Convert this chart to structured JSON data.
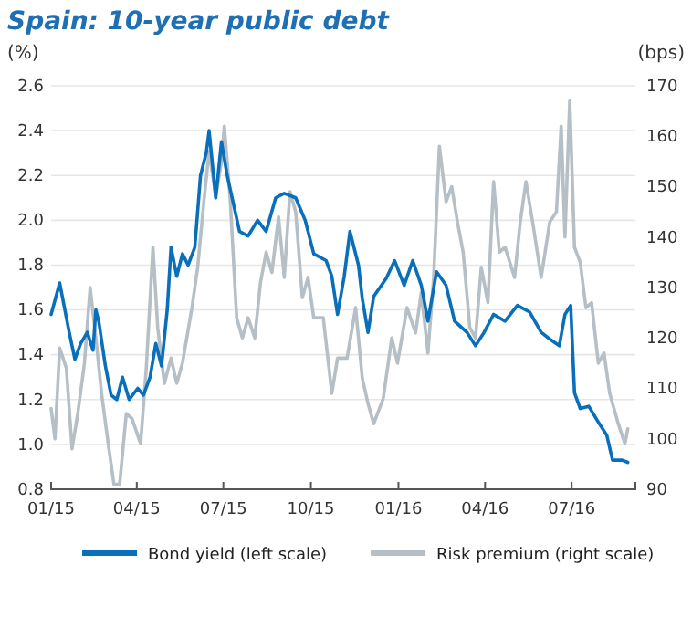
{
  "chart_data": {
    "type": "line",
    "title": "Spain: 10-year public debt",
    "ylabel": "(%)",
    "y2label": "(bps)",
    "xlim": [
      "2015-01-01",
      "2016-09-06"
    ],
    "xticks": [
      {
        "value": "2015-01-01",
        "label": "01/15"
      },
      {
        "value": "2015-04-01",
        "label": "04/15"
      },
      {
        "value": "2015-07-01",
        "label": "07/15"
      },
      {
        "value": "2015-10-01",
        "label": "10/15"
      },
      {
        "value": "2016-01-01",
        "label": "01/16"
      },
      {
        "value": "2016-04-01",
        "label": "04/16"
      },
      {
        "value": "2016-07-01",
        "label": "07/16"
      }
    ],
    "ylim": [
      0.8,
      2.6
    ],
    "yticks": [
      0.8,
      {
        "value": 1.0,
        "label": "1.0"
      },
      1.2,
      1.4,
      1.6,
      1.8,
      {
        "value": 2.0,
        "label": "2.0"
      },
      2.2,
      2.4,
      2.6
    ],
    "y2lim": [
      90,
      170
    ],
    "y2ticks": [
      90,
      100,
      110,
      120,
      130,
      140,
      150,
      160,
      170
    ],
    "grid": "y",
    "legend": "bottom",
    "line_style": "solid",
    "marker": "none",
    "series": [
      {
        "name": "Bond yield (left scale)",
        "color": "#0a6fba",
        "axis": "y",
        "x": [
          "2015-01-01",
          "2015-01-10",
          "2015-01-20",
          "2015-01-26",
          "2015-02-01",
          "2015-02-08",
          "2015-02-14",
          "2015-02-17",
          "2015-02-20",
          "2015-02-27",
          "2015-03-05",
          "2015-03-11",
          "2015-03-17",
          "2015-03-24",
          "2015-04-02",
          "2015-04-08",
          "2015-04-15",
          "2015-04-21",
          "2015-04-27",
          "2015-05-03",
          "2015-05-07",
          "2015-05-13",
          "2015-05-19",
          "2015-05-25",
          "2015-06-01",
          "2015-06-07",
          "2015-06-13",
          "2015-06-16",
          "2015-06-23",
          "2015-06-29",
          "2015-07-05",
          "2015-07-18",
          "2015-07-27",
          "2015-08-06",
          "2015-08-15",
          "2015-08-25",
          "2015-09-03",
          "2015-09-15",
          "2015-09-25",
          "2015-10-04",
          "2015-10-17",
          "2015-10-23",
          "2015-10-29",
          "2015-11-05",
          "2015-11-11",
          "2015-11-20",
          "2015-11-24",
          "2015-11-30",
          "2015-12-06",
          "2015-12-19",
          "2015-12-28",
          "2016-01-07",
          "2016-01-16",
          "2016-01-25",
          "2016-02-01",
          "2016-02-10",
          "2016-02-20",
          "2016-02-29",
          "2016-03-13",
          "2016-03-22",
          "2016-03-31",
          "2016-04-10",
          "2016-04-22",
          "2016-05-05",
          "2016-05-18",
          "2016-05-30",
          "2016-06-08",
          "2016-06-18",
          "2016-06-24",
          "2016-06-30",
          "2016-07-04",
          "2016-07-10",
          "2016-07-19",
          "2016-07-29",
          "2016-08-07",
          "2016-08-13",
          "2016-08-23",
          "2016-08-29"
        ],
        "values": [
          1.58,
          1.72,
          1.5,
          1.38,
          1.45,
          1.5,
          1.42,
          1.6,
          1.55,
          1.35,
          1.22,
          1.2,
          1.3,
          1.2,
          1.25,
          1.22,
          1.3,
          1.45,
          1.35,
          1.6,
          1.88,
          1.75,
          1.85,
          1.8,
          1.88,
          2.2,
          2.3,
          2.4,
          2.1,
          2.35,
          2.2,
          1.95,
          1.93,
          2.0,
          1.95,
          2.1,
          2.12,
          2.1,
          2.0,
          1.85,
          1.82,
          1.75,
          1.58,
          1.75,
          1.95,
          1.8,
          1.65,
          1.5,
          1.66,
          1.74,
          1.82,
          1.71,
          1.82,
          1.71,
          1.55,
          1.77,
          1.71,
          1.55,
          1.5,
          1.44,
          1.5,
          1.58,
          1.55,
          1.62,
          1.59,
          1.5,
          1.47,
          1.44,
          1.58,
          1.62,
          1.23,
          1.16,
          1.17,
          1.1,
          1.04,
          0.93,
          0.93,
          0.92
        ]
      },
      {
        "name": "Risk premium (right scale)",
        "color": "#b5bfc5",
        "axis": "y2",
        "x": [
          "2015-01-01",
          "2015-01-05",
          "2015-01-10",
          "2015-01-17",
          "2015-01-23",
          "2015-01-29",
          "2015-02-05",
          "2015-02-11",
          "2015-02-17",
          "2015-02-23",
          "2015-03-02",
          "2015-03-08",
          "2015-03-14",
          "2015-03-21",
          "2015-03-27",
          "2015-04-05",
          "2015-04-11",
          "2015-04-18",
          "2015-04-23",
          "2015-04-30",
          "2015-05-07",
          "2015-05-13",
          "2015-05-19",
          "2015-05-29",
          "2015-06-04",
          "2015-06-10",
          "2015-06-16",
          "2015-06-23",
          "2015-06-29",
          "2015-07-02",
          "2015-07-08",
          "2015-07-15",
          "2015-07-21",
          "2015-07-27",
          "2015-08-03",
          "2015-08-09",
          "2015-08-15",
          "2015-08-21",
          "2015-08-28",
          "2015-09-03",
          "2015-09-09",
          "2015-09-15",
          "2015-09-22",
          "2015-09-28",
          "2015-10-04",
          "2015-10-14",
          "2015-10-23",
          "2015-10-29",
          "2015-11-08",
          "2015-11-17",
          "2015-11-24",
          "2015-11-30",
          "2015-12-06",
          "2015-12-16",
          "2015-12-25",
          "2015-12-31",
          "2016-01-10",
          "2016-01-19",
          "2016-01-25",
          "2016-02-01",
          "2016-02-07",
          "2016-02-13",
          "2016-02-20",
          "2016-02-26",
          "2016-03-03",
          "2016-03-09",
          "2016-03-16",
          "2016-03-22",
          "2016-03-28",
          "2016-04-04",
          "2016-04-10",
          "2016-04-16",
          "2016-04-22",
          "2016-05-02",
          "2016-05-08",
          "2016-05-14",
          "2016-05-21",
          "2016-05-30",
          "2016-06-08",
          "2016-06-15",
          "2016-06-20",
          "2016-06-24",
          "2016-06-29",
          "2016-07-04",
          "2016-07-10",
          "2016-07-16",
          "2016-07-22",
          "2016-07-29",
          "2016-08-04",
          "2016-08-10",
          "2016-08-19",
          "2016-08-26",
          "2016-08-29"
        ],
        "values": [
          106,
          100,
          118,
          114,
          98,
          105,
          115,
          130,
          120,
          109,
          99,
          91,
          91,
          105,
          104,
          99,
          114,
          138,
          122,
          111,
          116,
          111,
          115,
          126,
          134,
          146,
          157,
          148,
          155,
          162,
          148,
          124,
          120,
          124,
          120,
          131,
          137,
          133,
          144,
          132,
          149,
          145,
          128,
          132,
          124,
          124,
          109,
          116,
          116,
          126,
          112,
          107,
          103,
          108,
          120,
          115,
          126,
          121,
          129,
          117,
          132,
          158,
          147,
          150,
          143,
          137,
          122,
          120,
          134,
          127,
          151,
          137,
          138,
          132,
          143,
          151,
          143,
          132,
          143,
          145,
          162,
          140,
          167,
          138,
          135,
          126,
          127,
          115,
          117,
          109,
          103,
          99,
          102
        ]
      }
    ]
  }
}
